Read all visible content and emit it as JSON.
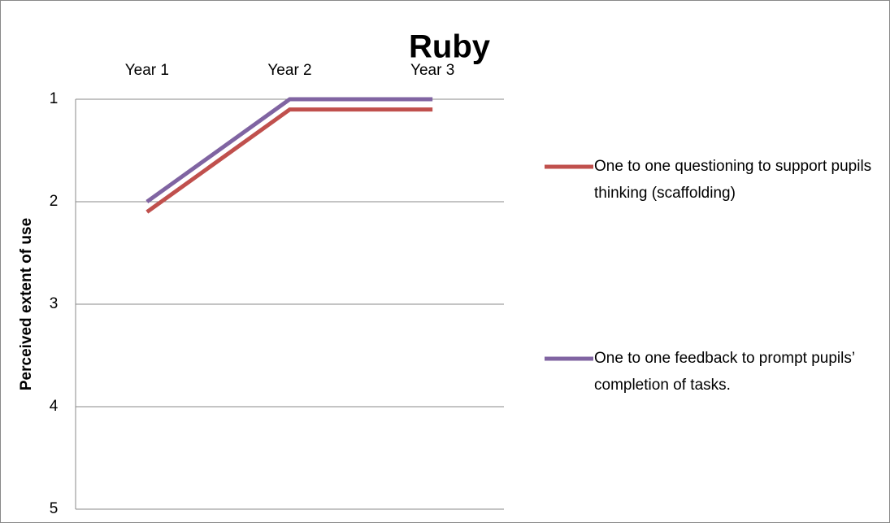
{
  "chart_data": {
    "type": "line",
    "title": "Ruby",
    "y_label": "Perceived extent of use",
    "categories": [
      "Year 1",
      "Year 2",
      "Year 3"
    ],
    "series": [
      {
        "name": "One to one questioning to support pupils thinking (scaffolding)",
        "color": "#c0504d",
        "values": [
          2.1,
          1.1,
          1.1
        ]
      },
      {
        "name": "One to one feedback to prompt pupils’ completion of tasks.",
        "color": "#8064a2",
        "values": [
          2,
          1,
          1
        ]
      }
    ],
    "ylim": [
      1,
      5
    ],
    "yticks": [
      1,
      2,
      3,
      4,
      5
    ],
    "y_reversed": true,
    "grid": true,
    "legend": "right"
  }
}
